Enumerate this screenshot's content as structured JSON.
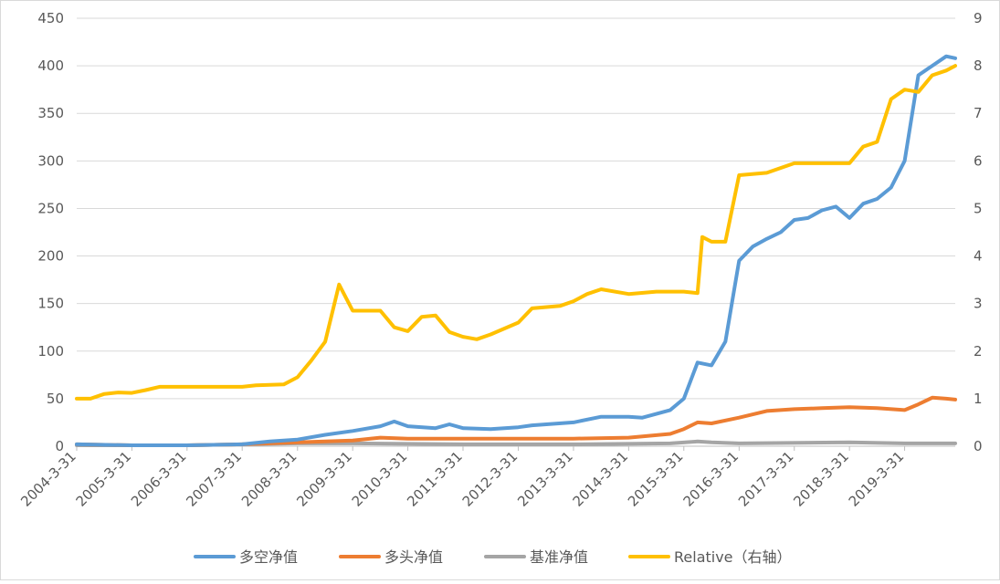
{
  "chart_data": {
    "type": "line",
    "title": "",
    "xlabel": "",
    "ylabel": "",
    "x_tick_labels": [
      "2004-3-31",
      "2005-3-31",
      "2006-3-31",
      "2007-3-31",
      "2008-3-31",
      "2009-3-31",
      "2010-3-31",
      "2011-3-31",
      "2012-3-31",
      "2013-3-31",
      "2014-3-31",
      "2015-3-31",
      "2016-3-31",
      "2017-3-31",
      "2018-3-31",
      "2019-3-31"
    ],
    "x_range": [
      "2004-03-31",
      "2020-02-29"
    ],
    "y_left": {
      "ylim": [
        0,
        450
      ],
      "ticks": [
        "0",
        "50",
        "100",
        "150",
        "200",
        "250",
        "300",
        "350",
        "400",
        "450"
      ]
    },
    "y_right": {
      "ylim": [
        0,
        9
      ],
      "ticks": [
        "0",
        "1",
        "2",
        "3",
        "4",
        "5",
        "6",
        "7",
        "8",
        "9"
      ]
    },
    "grid": true,
    "legend_position": "bottom",
    "series": [
      {
        "name": "多空净值",
        "axis": "left",
        "color": "#5B9BD5",
        "points": [
          [
            "2004-03-31",
            2
          ],
          [
            "2005-03-31",
            1
          ],
          [
            "2006-03-31",
            1
          ],
          [
            "2007-03-31",
            2
          ],
          [
            "2007-09-30",
            5
          ],
          [
            "2008-03-31",
            7
          ],
          [
            "2008-09-30",
            12
          ],
          [
            "2009-03-31",
            16
          ],
          [
            "2009-09-30",
            21
          ],
          [
            "2009-12-31",
            26
          ],
          [
            "2010-03-31",
            21
          ],
          [
            "2010-09-30",
            19
          ],
          [
            "2010-12-31",
            23
          ],
          [
            "2011-03-31",
            19
          ],
          [
            "2011-09-30",
            18
          ],
          [
            "2012-03-31",
            20
          ],
          [
            "2012-06-30",
            22
          ],
          [
            "2013-03-31",
            25
          ],
          [
            "2013-09-30",
            31
          ],
          [
            "2014-03-31",
            31
          ],
          [
            "2014-06-30",
            30
          ],
          [
            "2014-12-31",
            38
          ],
          [
            "2015-03-31",
            50
          ],
          [
            "2015-06-30",
            88
          ],
          [
            "2015-09-30",
            85
          ],
          [
            "2015-12-31",
            110
          ],
          [
            "2016-03-31",
            195
          ],
          [
            "2016-06-30",
            210
          ],
          [
            "2016-09-30",
            218
          ],
          [
            "2016-12-31",
            225
          ],
          [
            "2017-03-31",
            238
          ],
          [
            "2017-06-30",
            240
          ],
          [
            "2017-09-30",
            248
          ],
          [
            "2017-12-31",
            252
          ],
          [
            "2018-03-31",
            240
          ],
          [
            "2018-06-30",
            255
          ],
          [
            "2018-09-30",
            260
          ],
          [
            "2018-12-31",
            272
          ],
          [
            "2019-03-31",
            300
          ],
          [
            "2019-06-30",
            390
          ],
          [
            "2019-09-30",
            400
          ],
          [
            "2019-12-31",
            410
          ],
          [
            "2020-02-29",
            408
          ]
        ]
      },
      {
        "name": "多头净值",
        "axis": "left",
        "color": "#ED7D31",
        "points": [
          [
            "2004-03-31",
            2
          ],
          [
            "2005-03-31",
            1
          ],
          [
            "2006-03-31",
            1
          ],
          [
            "2007-03-31",
            2
          ],
          [
            "2008-03-31",
            4
          ],
          [
            "2009-03-31",
            6
          ],
          [
            "2009-09-30",
            9
          ],
          [
            "2010-03-31",
            8
          ],
          [
            "2011-03-31",
            8
          ],
          [
            "2012-03-31",
            8
          ],
          [
            "2013-03-31",
            8
          ],
          [
            "2014-03-31",
            9
          ],
          [
            "2014-12-31",
            13
          ],
          [
            "2015-03-31",
            18
          ],
          [
            "2015-06-30",
            25
          ],
          [
            "2015-09-30",
            24
          ],
          [
            "2016-03-31",
            30
          ],
          [
            "2016-09-30",
            37
          ],
          [
            "2017-03-31",
            39
          ],
          [
            "2017-09-30",
            40
          ],
          [
            "2018-03-31",
            41
          ],
          [
            "2018-09-30",
            40
          ],
          [
            "2019-03-31",
            38
          ],
          [
            "2019-06-30",
            44
          ],
          [
            "2019-09-30",
            51
          ],
          [
            "2019-12-31",
            50
          ],
          [
            "2020-02-29",
            49
          ]
        ]
      },
      {
        "name": "基准净值",
        "axis": "left",
        "color": "#A5A5A5",
        "points": [
          [
            "2004-03-31",
            1
          ],
          [
            "2006-03-31",
            1
          ],
          [
            "2007-03-31",
            2
          ],
          [
            "2008-03-31",
            3
          ],
          [
            "2009-03-31",
            3
          ],
          [
            "2011-03-31",
            2
          ],
          [
            "2013-03-31",
            2
          ],
          [
            "2014-12-31",
            3
          ],
          [
            "2015-06-30",
            5
          ],
          [
            "2015-09-30",
            4
          ],
          [
            "2016-03-31",
            3
          ],
          [
            "2018-03-31",
            4
          ],
          [
            "2019-03-31",
            3
          ],
          [
            "2020-02-29",
            3
          ]
        ]
      },
      {
        "name": "Relative（右轴）",
        "axis": "right",
        "color": "#FFC000",
        "points": [
          [
            "2004-03-31",
            1.0
          ],
          [
            "2004-06-30",
            1.0
          ],
          [
            "2004-09-30",
            1.1
          ],
          [
            "2004-12-31",
            1.13
          ],
          [
            "2005-03-31",
            1.12
          ],
          [
            "2005-06-30",
            1.18
          ],
          [
            "2005-09-30",
            1.25
          ],
          [
            "2006-03-31",
            1.25
          ],
          [
            "2007-03-31",
            1.25
          ],
          [
            "2007-06-30",
            1.28
          ],
          [
            "2007-12-31",
            1.3
          ],
          [
            "2008-03-31",
            1.45
          ],
          [
            "2008-06-30",
            1.8
          ],
          [
            "2008-09-30",
            2.2
          ],
          [
            "2008-12-31",
            3.4
          ],
          [
            "2009-03-31",
            2.85
          ],
          [
            "2009-09-30",
            2.85
          ],
          [
            "2009-12-31",
            2.5
          ],
          [
            "2010-03-31",
            2.42
          ],
          [
            "2010-06-30",
            2.72
          ],
          [
            "2010-09-30",
            2.75
          ],
          [
            "2010-12-31",
            2.4
          ],
          [
            "2011-03-31",
            2.3
          ],
          [
            "2011-06-30",
            2.25
          ],
          [
            "2011-09-30",
            2.35
          ],
          [
            "2012-03-31",
            2.6
          ],
          [
            "2012-06-30",
            2.9
          ],
          [
            "2012-12-31",
            2.95
          ],
          [
            "2013-03-31",
            3.05
          ],
          [
            "2013-06-30",
            3.2
          ],
          [
            "2013-09-30",
            3.3
          ],
          [
            "2014-03-31",
            3.2
          ],
          [
            "2014-09-30",
            3.25
          ],
          [
            "2015-03-31",
            3.25
          ],
          [
            "2015-06-30",
            3.22
          ],
          [
            "2015-07-31",
            4.4
          ],
          [
            "2015-09-30",
            4.3
          ],
          [
            "2015-12-31",
            4.3
          ],
          [
            "2016-03-31",
            5.7
          ],
          [
            "2016-09-30",
            5.75
          ],
          [
            "2017-03-31",
            5.95
          ],
          [
            "2017-09-30",
            5.95
          ],
          [
            "2018-03-31",
            5.95
          ],
          [
            "2018-06-30",
            6.3
          ],
          [
            "2018-09-30",
            6.4
          ],
          [
            "2018-12-31",
            7.3
          ],
          [
            "2019-03-31",
            7.5
          ],
          [
            "2019-06-30",
            7.45
          ],
          [
            "2019-09-30",
            7.8
          ],
          [
            "2019-12-31",
            7.9
          ],
          [
            "2020-02-29",
            8.0
          ]
        ]
      }
    ]
  }
}
